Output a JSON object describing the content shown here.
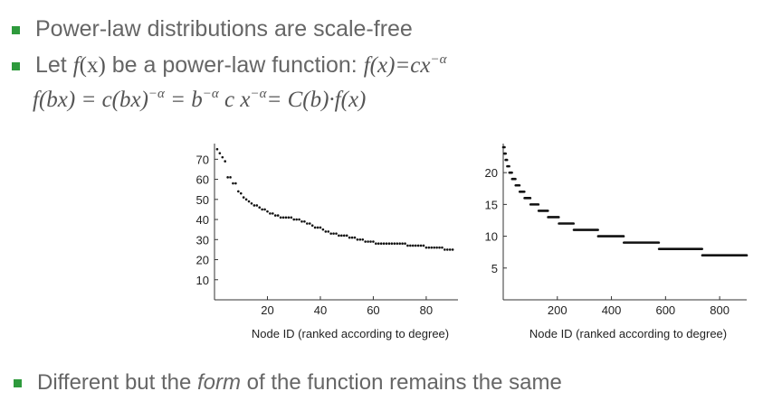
{
  "bullets": {
    "b1": "Power-law distributions are scale-free",
    "b2_prefix": "Let ",
    "b2_f": "f",
    "b2_x": "(x)",
    "b2_mid": " be a power-law function: ",
    "b2_formula_lhs": "f(x)=cx",
    "b2_formula_exp": "−α",
    "b3_before": "Different but the ",
    "b3_em": "form",
    "b3_after": " of the function remains the same"
  },
  "equation": {
    "p1": "f(bx) = c(bx)",
    "e1": "−α",
    "p2": " = b",
    "e2": "−α",
    "p3": " c x",
    "e3": "−α",
    "p4": "= C(b)·f(x)"
  },
  "colors": {
    "bullet": "#2e9a3c",
    "text": "#666666",
    "points": "#111111"
  },
  "chart_data": [
    {
      "type": "scatter",
      "xlabel": "Node ID (ranked according to degree)",
      "ylabel": "",
      "xlim": [
        0,
        92
      ],
      "ylim": [
        0,
        76
      ],
      "xticks": [
        20,
        40,
        60,
        80
      ],
      "yticks": [
        10,
        20,
        30,
        40,
        50,
        60,
        70
      ],
      "series": [
        {
          "x": [
            1,
            2,
            3,
            4,
            5,
            6,
            7,
            8,
            9,
            10,
            11,
            12,
            13,
            14,
            15,
            16,
            17,
            18,
            19,
            20,
            21,
            22,
            23,
            24,
            25,
            26,
            27,
            28,
            29,
            30,
            31,
            32,
            33,
            34,
            35,
            36,
            37,
            38,
            39,
            40,
            41,
            42,
            43,
            44,
            45,
            46,
            47,
            48,
            49,
            50,
            51,
            52,
            53,
            54,
            55,
            56,
            57,
            58,
            59,
            60,
            61,
            62,
            63,
            64,
            65,
            66,
            67,
            68,
            69,
            70,
            71,
            72,
            73,
            74,
            75,
            76,
            77,
            78,
            79,
            80,
            81,
            82,
            83,
            84,
            85,
            86,
            87,
            88,
            89,
            90
          ],
          "y": [
            75,
            73,
            71,
            69,
            61,
            61,
            58,
            58,
            54,
            53,
            51,
            50,
            49,
            48,
            47,
            47,
            46,
            45,
            45,
            44,
            43,
            43,
            42,
            42,
            41,
            41,
            41,
            41,
            41,
            40,
            40,
            40,
            39,
            39,
            38,
            38,
            37,
            36,
            36,
            36,
            35,
            34,
            34,
            33,
            33,
            33,
            32,
            32,
            32,
            32,
            31,
            31,
            31,
            30,
            30,
            30,
            29,
            29,
            29,
            29,
            28,
            28,
            28,
            28,
            28,
            28,
            28,
            28,
            28,
            28,
            28,
            28,
            27,
            27,
            27,
            27,
            27,
            27,
            27,
            26,
            26,
            26,
            26,
            26,
            26,
            26,
            25,
            25,
            25,
            25
          ]
        }
      ]
    },
    {
      "type": "scatter",
      "xlabel": "Node ID (ranked according to degree)",
      "ylabel": "",
      "xlim": [
        0,
        900
      ],
      "ylim": [
        0,
        24
      ],
      "xticks": [
        200,
        400,
        600,
        800
      ],
      "yticks": [
        5,
        10,
        15,
        20
      ],
      "steps": [
        {
          "y": 24,
          "x": [
            0,
            3
          ]
        },
        {
          "y": 23,
          "x": [
            4,
            8
          ]
        },
        {
          "y": 22,
          "x": [
            9,
            14
          ]
        },
        {
          "y": 21,
          "x": [
            15,
            22
          ]
        },
        {
          "y": 20,
          "x": [
            23,
            32
          ]
        },
        {
          "y": 19,
          "x": [
            33,
            45
          ]
        },
        {
          "y": 18,
          "x": [
            46,
            60
          ]
        },
        {
          "y": 17,
          "x": [
            61,
            78
          ]
        },
        {
          "y": 16,
          "x": [
            79,
            100
          ]
        },
        {
          "y": 15,
          "x": [
            101,
            130
          ]
        },
        {
          "y": 14,
          "x": [
            131,
            165
          ]
        },
        {
          "y": 13,
          "x": [
            166,
            205
          ]
        },
        {
          "y": 12,
          "x": [
            206,
            260
          ]
        },
        {
          "y": 11,
          "x": [
            261,
            350
          ]
        },
        {
          "y": 10,
          "x": [
            351,
            445
          ]
        },
        {
          "y": 9,
          "x": [
            446,
            575
          ]
        },
        {
          "y": 8,
          "x": [
            576,
            735
          ]
        },
        {
          "y": 7,
          "x": [
            736,
            900
          ]
        }
      ]
    }
  ]
}
